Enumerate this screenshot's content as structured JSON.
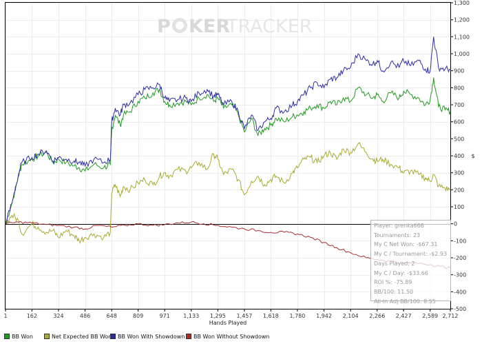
{
  "watermark": {
    "left": "P",
    "logo": "O",
    "mid": "KER",
    "right": "TRACKER"
  },
  "stats": {
    "player": "Player: grenka666",
    "tournaments": "Tournaments: 23",
    "net_won": "My C Net Won: -$67.31",
    "per_tournament": "My C / Tournament: -$2.93",
    "days_played": "Days Played: 2",
    "per_day": "My C / Day: -$33.66",
    "roi": "ROI %: -75.89",
    "bb100": "BB/100: 11.50",
    "allin_bb100": "All-In Adj BB/100: 8.55"
  },
  "chart_data": {
    "type": "line",
    "xlabel": "Hands Played",
    "ylabel": "$",
    "xlim": [
      1,
      2712
    ],
    "ylim": [
      -500,
      1300
    ],
    "x_ticks": [
      "1",
      "162",
      "324",
      "486",
      "648",
      "809",
      "971",
      "1,133",
      "1,295",
      "1,457",
      "1,618",
      "1,780",
      "1,942",
      "2,104",
      "2,266",
      "2,427",
      "2,589",
      "2,712"
    ],
    "x_tick_values": [
      1,
      162,
      324,
      486,
      648,
      809,
      971,
      1133,
      1295,
      1457,
      1618,
      1780,
      1942,
      2104,
      2266,
      2427,
      2589,
      2712
    ],
    "y_ticks": [
      "1,300",
      "1,200",
      "1,100",
      "1,000",
      "900",
      "800",
      "700",
      "600",
      "500",
      "400",
      "300",
      "200",
      "100",
      "0",
      "-100",
      "-200",
      "-300",
      "-400",
      "-500"
    ],
    "y_tick_values": [
      1300,
      1200,
      1100,
      1000,
      900,
      800,
      700,
      600,
      500,
      400,
      300,
      200,
      100,
      0,
      -100,
      -200,
      -300,
      -400,
      -500
    ],
    "series": [
      {
        "name": "BB Won",
        "color": "#1e9a1e",
        "x": [
          1,
          40,
          80,
          100,
          162,
          200,
          250,
          290,
          324,
          370,
          420,
          450,
          486,
          540,
          600,
          640,
          648,
          670,
          700,
          720,
          760,
          809,
          850,
          900,
          940,
          971,
          1000,
          1050,
          1100,
          1133,
          1180,
          1230,
          1270,
          1295,
          1330,
          1380,
          1420,
          1457,
          1500,
          1540,
          1580,
          1618,
          1650,
          1700,
          1750,
          1780,
          1820,
          1860,
          1900,
          1942,
          1980,
          2020,
          2060,
          2104,
          2150,
          2200,
          2240,
          2266,
          2300,
          2350,
          2400,
          2427,
          2470,
          2520,
          2560,
          2589,
          2610,
          2640,
          2680,
          2712
        ],
        "y": [
          0,
          120,
          280,
          350,
          380,
          400,
          420,
          360,
          380,
          360,
          340,
          330,
          310,
          350,
          330,
          350,
          550,
          640,
          580,
          640,
          660,
          720,
          740,
          770,
          790,
          720,
          700,
          710,
          720,
          700,
          740,
          760,
          720,
          740,
          680,
          700,
          640,
          540,
          620,
          520,
          560,
          580,
          620,
          600,
          630,
          640,
          660,
          680,
          700,
          680,
          720,
          700,
          740,
          720,
          800,
          760,
          740,
          760,
          720,
          770,
          740,
          780,
          760,
          740,
          700,
          730,
          860,
          690,
          670,
          660
        ]
      },
      {
        "name": "Net Expected BB Won",
        "color": "#a9a92e",
        "x": [
          1,
          40,
          80,
          100,
          162,
          200,
          250,
          290,
          324,
          370,
          420,
          450,
          486,
          540,
          600,
          640,
          648,
          670,
          700,
          720,
          760,
          809,
          850,
          900,
          940,
          971,
          1000,
          1050,
          1100,
          1133,
          1180,
          1230,
          1270,
          1295,
          1330,
          1380,
          1420,
          1457,
          1500,
          1540,
          1580,
          1618,
          1650,
          1700,
          1750,
          1780,
          1820,
          1860,
          1900,
          1942,
          1980,
          2020,
          2060,
          2104,
          2150,
          2200,
          2240,
          2266,
          2300,
          2350,
          2400,
          2427,
          2470,
          2520,
          2560,
          2589,
          2610,
          2640,
          2680,
          2712
        ],
        "y": [
          0,
          50,
          20,
          -60,
          0,
          -20,
          -50,
          -40,
          -80,
          -40,
          -70,
          -100,
          -80,
          -60,
          -80,
          -50,
          180,
          230,
          160,
          220,
          200,
          240,
          260,
          230,
          280,
          300,
          280,
          320,
          310,
          330,
          360,
          320,
          410,
          380,
          290,
          320,
          260,
          170,
          250,
          280,
          230,
          260,
          280,
          240,
          300,
          330,
          380,
          390,
          360,
          400,
          420,
          380,
          440,
          420,
          470,
          420,
          380,
          370,
          380,
          350,
          330,
          300,
          310,
          290,
          270,
          250,
          290,
          220,
          210,
          200
        ]
      },
      {
        "name": "BB Won With Showdown",
        "color": "#2c2ca8",
        "x": [
          1,
          40,
          80,
          100,
          162,
          200,
          250,
          290,
          324,
          370,
          420,
          450,
          486,
          540,
          600,
          640,
          648,
          670,
          700,
          720,
          760,
          809,
          850,
          900,
          940,
          971,
          1000,
          1050,
          1100,
          1133,
          1180,
          1230,
          1270,
          1295,
          1330,
          1380,
          1420,
          1457,
          1500,
          1540,
          1580,
          1618,
          1650,
          1700,
          1750,
          1780,
          1820,
          1860,
          1900,
          1942,
          1980,
          2020,
          2060,
          2104,
          2150,
          2200,
          2240,
          2266,
          2300,
          2350,
          2400,
          2427,
          2470,
          2520,
          2560,
          2589,
          2610,
          2640,
          2680,
          2712
        ],
        "y": [
          0,
          120,
          290,
          360,
          390,
          410,
          430,
          370,
          390,
          380,
          370,
          360,
          340,
          380,
          360,
          380,
          600,
          680,
          640,
          700,
          710,
          760,
          790,
          800,
          820,
          740,
          720,
          730,
          740,
          720,
          770,
          790,
          750,
          760,
          700,
          720,
          660,
          560,
          640,
          550,
          600,
          620,
          680,
          660,
          700,
          720,
          760,
          800,
          830,
          800,
          850,
          860,
          900,
          920,
          1000,
          960,
          940,
          960,
          900,
          950,
          920,
          960,
          930,
          960,
          910,
          900,
          1100,
          920,
          910,
          910
        ]
      },
      {
        "name": "BB Won Without Showdown",
        "color": "#a82e2e",
        "x": [
          1,
          80,
          162,
          250,
          324,
          420,
          486,
          560,
          648,
          730,
          809,
          900,
          971,
          1050,
          1133,
          1210,
          1295,
          1380,
          1457,
          1540,
          1618,
          1700,
          1780,
          1860,
          1942,
          2020,
          2104,
          2200,
          2266,
          2350,
          2427,
          2500,
          2589,
          2650,
          2712
        ],
        "y": [
          0,
          10,
          5,
          -5,
          -10,
          -20,
          -30,
          -10,
          -20,
          -10,
          0,
          -10,
          -5,
          5,
          10,
          0,
          -10,
          -20,
          -30,
          -40,
          -50,
          -50,
          -60,
          -80,
          -110,
          -140,
          -170,
          -200,
          -210,
          -220,
          -230,
          -230,
          -240,
          -250,
          -260
        ]
      }
    ]
  }
}
